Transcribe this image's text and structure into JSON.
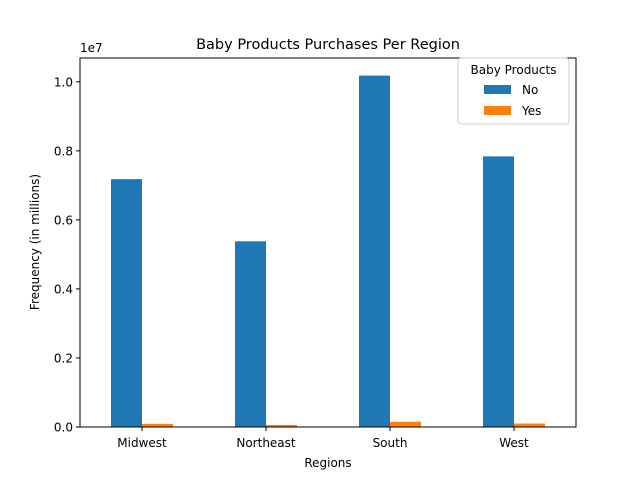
{
  "chart_data": {
    "type": "bar",
    "title": "Baby Products Purchases Per Region",
    "xlabel": "Regions",
    "ylabel": "Frequency (in millions)",
    "y_offset_label": "1e7",
    "categories": [
      "Midwest",
      "Northeast",
      "South",
      "West"
    ],
    "series": [
      {
        "name": "No",
        "color": "#1f77b4",
        "values": [
          7180000,
          5380000,
          10180000,
          7840000
        ]
      },
      {
        "name": "Yes",
        "color": "#ff7f0e",
        "values": [
          90000,
          60000,
          150000,
          100000
        ]
      }
    ],
    "ylim": [
      0,
      10690000
    ],
    "yticks": [
      0,
      2000000,
      4000000,
      6000000,
      8000000,
      10000000
    ],
    "ytick_labels": [
      "0.0",
      "0.2",
      "0.4",
      "0.6",
      "0.8",
      "1.0"
    ],
    "grid": false,
    "legend": {
      "title": "Baby Products",
      "placement": "top-right"
    }
  }
}
